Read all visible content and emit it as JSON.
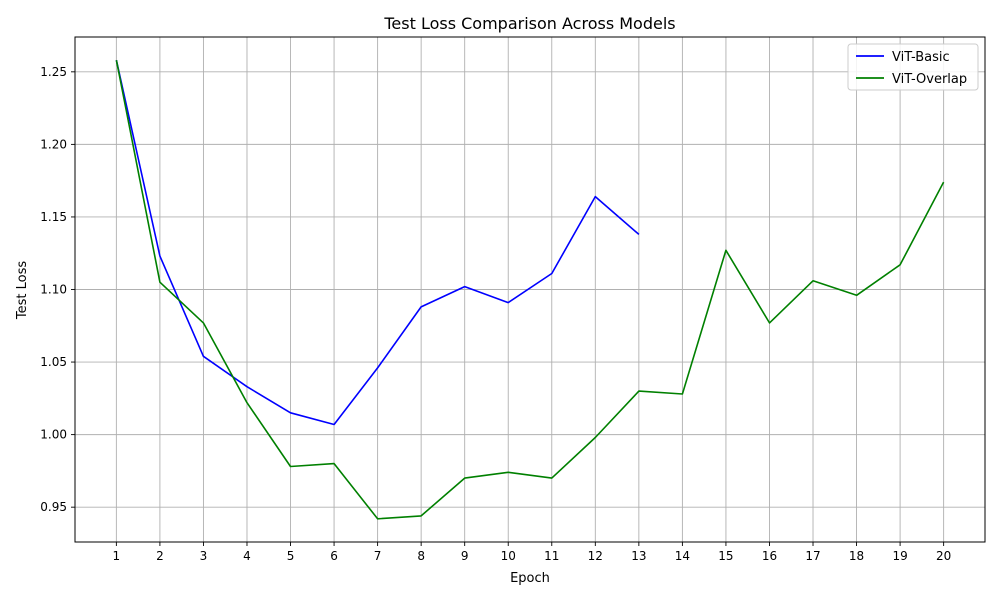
{
  "chart_data": {
    "type": "line",
    "title": "Test Loss Comparison Across Models",
    "xlabel": "Epoch",
    "ylabel": "Test Loss",
    "xlim": [
      0.05,
      20.95
    ],
    "ylim": [
      0.926,
      1.274
    ],
    "x_ticks": [
      1,
      2,
      3,
      4,
      5,
      6,
      7,
      8,
      9,
      10,
      11,
      12,
      13,
      14,
      15,
      16,
      17,
      18,
      19,
      20
    ],
    "y_ticks": [
      "0.95",
      "1.00",
      "1.05",
      "1.10",
      "1.15",
      "1.20",
      "1.25"
    ],
    "grid": true,
    "legend_position": "top-right",
    "series": [
      {
        "name": "ViT-Basic",
        "color": "#0000ff",
        "x": [
          1,
          2,
          3,
          4,
          5,
          6,
          7,
          8,
          9,
          10,
          11,
          12,
          13
        ],
        "values": [
          1.258,
          1.123,
          1.054,
          1.033,
          1.015,
          1.007,
          1.046,
          1.088,
          1.102,
          1.091,
          1.111,
          1.164,
          1.138
        ]
      },
      {
        "name": "ViT-Overlap",
        "color": "#008000",
        "x": [
          1,
          2,
          3,
          4,
          5,
          6,
          7,
          8,
          9,
          10,
          11,
          12,
          13,
          14,
          15,
          16,
          17,
          18,
          19,
          20
        ],
        "values": [
          1.258,
          1.105,
          1.077,
          1.022,
          0.978,
          0.98,
          0.942,
          0.944,
          0.97,
          0.974,
          0.97,
          0.998,
          1.03,
          1.028,
          1.127,
          1.077,
          1.106,
          1.096,
          1.117,
          1.174
        ]
      }
    ]
  }
}
